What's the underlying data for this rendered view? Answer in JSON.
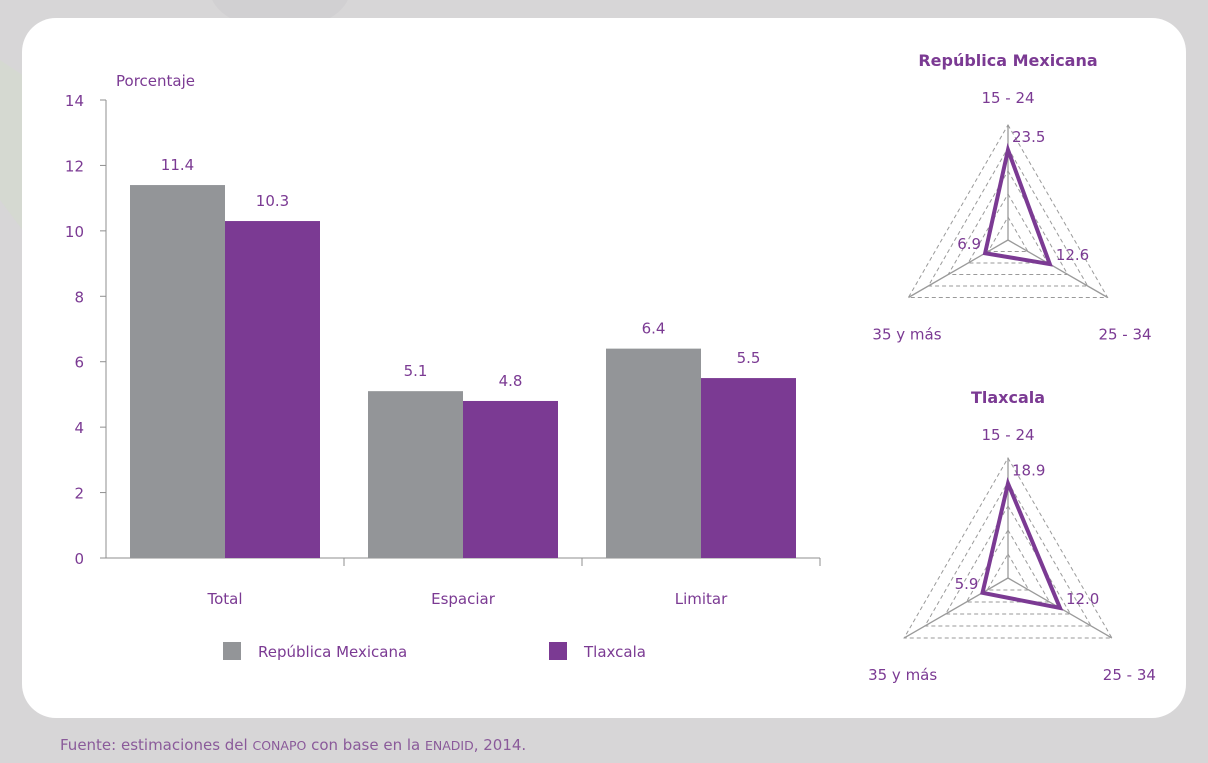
{
  "source": {
    "prefix": "Fuente: estimaciones del ",
    "org": "CONAPO",
    "mid": " con base en la ",
    "survey": "ENADID",
    "suffix": ",  2014."
  },
  "colors": {
    "nacional": "#939598",
    "estado": "#7b3a93",
    "text": "#7b3a93",
    "title": "#7b3a93",
    "axis": "#8f8f8f",
    "background": "#d7d6d7"
  },
  "chart_data": [
    {
      "type": "bar",
      "ylabel": "Porcentaje",
      "ylim": [
        0,
        14
      ],
      "yticks": [
        0,
        2,
        4,
        6,
        8,
        10,
        12,
        14
      ],
      "categories": [
        "Total",
        "Espaciar",
        "Limitar"
      ],
      "series": [
        {
          "name": "República Mexicana",
          "values": [
            11.4,
            5.1,
            6.4
          ],
          "labels": [
            "11.4",
            "5.1",
            "6.4"
          ],
          "color": "#939598"
        },
        {
          "name": "Tlaxcala",
          "values": [
            10.3,
            4.8,
            5.5
          ],
          "labels": [
            "10.3",
            "4.8",
            "5.5"
          ],
          "color": "#7b3a93"
        }
      ],
      "legend": "bottom",
      "grid": false
    },
    {
      "type": "radar",
      "title": "República Mexicana",
      "axes": [
        "15 - 24",
        "25 - 34",
        "35 y más"
      ],
      "values": [
        23.5,
        12.6,
        6.9
      ],
      "labels": [
        "23.5",
        "12.6",
        "6.9"
      ],
      "rmax": 30
    },
    {
      "type": "radar",
      "title": "Tlaxcala",
      "axes": [
        "15 - 24",
        "25 - 34",
        "35 y más"
      ],
      "values": [
        18.9,
        12.0,
        5.9
      ],
      "labels": [
        "18.9",
        "12.0",
        "5.9"
      ],
      "rmax": 24
    }
  ]
}
